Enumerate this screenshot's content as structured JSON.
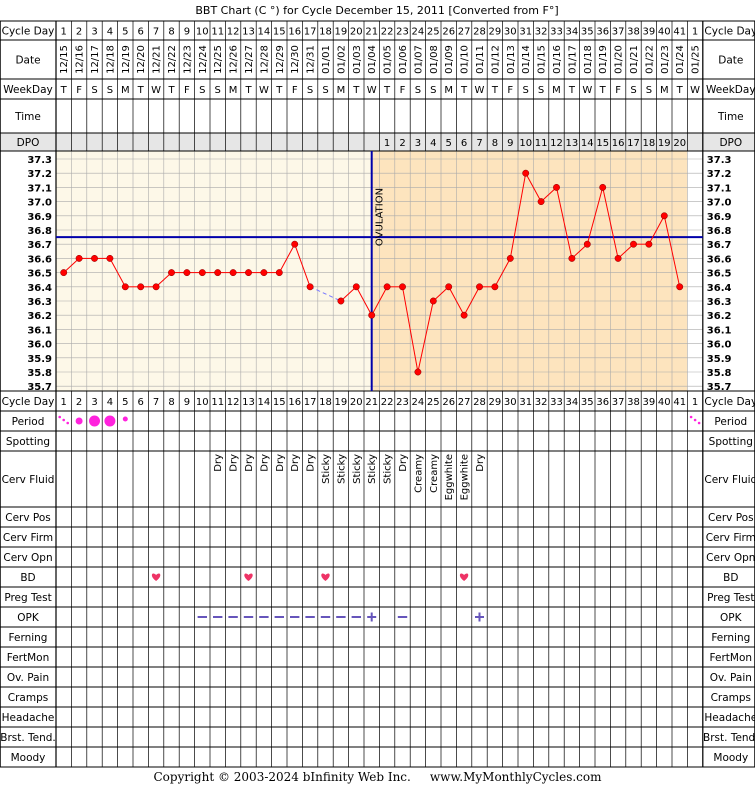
{
  "title": "BBT Chart (C °) for Cycle December 15, 2011  [Converted from F°]",
  "copyright": "Copyright © 2003-2024 bInfinity Web Inc.     www.MyMonthlyCycles.com",
  "row_labels": {
    "cycle_day": "Cycle Day",
    "date": "Date",
    "weekday": "WeekDay",
    "time": "Time",
    "dpo": "DPO",
    "period": "Period",
    "spotting": "Spotting",
    "cerv_fluid": "Cerv Fluid",
    "cerv_pos": "Cerv Pos",
    "cerv_firm": "Cerv Firm",
    "cerv_opn": "Cerv Opn",
    "bd": "BD",
    "preg_test": "Preg Test",
    "opk": "OPK",
    "ferning": "Ferning",
    "fertmon": "FertMon",
    "ov_pain": "Ov. Pain",
    "cramps": "Cramps",
    "headache": "Headache",
    "brst_tend": "Brst. Tend.",
    "moody": "Moody"
  },
  "colors": {
    "temp_line": "#ff0000",
    "coverline": "#0000aa",
    "ovulation_line": "#0000aa",
    "pre_ov_bg": "#fdf8e8",
    "post_ov_bg": "#fde4be",
    "period": "#ff22dd",
    "bd_heart": "#ee3366",
    "opk": "#6655bb"
  },
  "chart_data": {
    "type": "line",
    "cycle_days": [
      "1",
      "2",
      "3",
      "4",
      "5",
      "6",
      "7",
      "8",
      "9",
      "10",
      "11",
      "12",
      "13",
      "14",
      "15",
      "16",
      "17",
      "18",
      "19",
      "20",
      "21",
      "22",
      "23",
      "24",
      "25",
      "26",
      "27",
      "28",
      "29",
      "30",
      "31",
      "32",
      "33",
      "34",
      "35",
      "36",
      "37",
      "38",
      "39",
      "40",
      "41",
      "1"
    ],
    "dates": [
      "12/15",
      "12/16",
      "12/17",
      "12/18",
      "12/19",
      "12/20",
      "12/21",
      "12/22",
      "12/23",
      "12/24",
      "12/25",
      "12/26",
      "12/27",
      "12/28",
      "12/29",
      "12/30",
      "12/31",
      "01/01",
      "01/02",
      "01/03",
      "01/04",
      "01/05",
      "01/06",
      "01/07",
      "01/08",
      "01/09",
      "01/10",
      "01/11",
      "01/12",
      "01/13",
      "01/14",
      "01/15",
      "01/16",
      "01/17",
      "01/18",
      "01/19",
      "01/20",
      "01/21",
      "01/22",
      "01/23",
      "01/24",
      "01/25"
    ],
    "weekdays": [
      "T",
      "F",
      "S",
      "S",
      "M",
      "T",
      "W",
      "T",
      "F",
      "S",
      "S",
      "M",
      "T",
      "W",
      "T",
      "F",
      "S",
      "S",
      "M",
      "T",
      "W",
      "T",
      "F",
      "S",
      "S",
      "M",
      "T",
      "W",
      "T",
      "F",
      "S",
      "S",
      "M",
      "T",
      "W",
      "T",
      "F",
      "S",
      "S",
      "M",
      "T",
      "W"
    ],
    "dpo": [
      "",
      "",
      "",
      "",
      "",
      "",
      "",
      "",
      "",
      "",
      "",
      "",
      "",
      "",
      "",
      "",
      "",
      "",
      "",
      "",
      "",
      "1",
      "2",
      "3",
      "4",
      "5",
      "6",
      "7",
      "8",
      "9",
      "10",
      "11",
      "12",
      "13",
      "14",
      "15",
      "16",
      "17",
      "18",
      "19",
      "20",
      ""
    ],
    "temperatures": [
      36.5,
      36.6,
      36.6,
      36.6,
      36.4,
      36.4,
      36.4,
      36.5,
      36.5,
      36.5,
      36.5,
      36.5,
      36.5,
      36.5,
      36.5,
      36.7,
      36.4,
      null,
      36.3,
      36.4,
      36.2,
      36.4,
      36.4,
      35.8,
      36.3,
      36.4,
      36.2,
      36.4,
      36.4,
      36.6,
      37.2,
      37.0,
      37.1,
      36.6,
      36.7,
      37.1,
      36.6,
      36.7,
      36.7,
      36.9,
      36.4,
      null
    ],
    "dashed_gap_segment": [
      17,
      19
    ],
    "y_ticks": [
      "37.3",
      "37.2",
      "37.1",
      "37.0",
      "36.9",
      "36.8",
      "36.7",
      "36.6",
      "36.5",
      "36.4",
      "36.3",
      "36.2",
      "36.1",
      "36.0",
      "35.9",
      "35.8",
      "35.7"
    ],
    "ylim": [
      35.7,
      37.3
    ],
    "coverline": 36.75,
    "ovulation_day_index": 20,
    "ovulation_label": "OVULATION",
    "grid": true,
    "period": [
      1,
      2,
      3,
      3,
      1,
      0,
      0,
      0,
      0,
      0,
      0,
      0,
      0,
      0,
      0,
      0,
      0,
      0,
      0,
      0,
      0,
      0,
      0,
      0,
      0,
      0,
      0,
      0,
      0,
      0,
      0,
      0,
      0,
      0,
      0,
      0,
      0,
      0,
      0,
      0,
      0,
      1
    ],
    "cerv_fluid": [
      "",
      "",
      "",
      "",
      "",
      "",
      "",
      "",
      "",
      "",
      "Dry",
      "Dry",
      "Dry",
      "Dry",
      "Dry",
      "Dry",
      "Dry",
      "Sticky",
      "Sticky",
      "Sticky",
      "Sticky",
      "Sticky",
      "Dry",
      "Creamy",
      "Creamy",
      "Eggwhite",
      "Eggwhite",
      "Dry",
      "",
      "",
      "",
      "",
      "",
      "",
      "",
      "",
      "",
      "",
      "",
      "",
      "",
      ""
    ],
    "bd_days": [
      6,
      12,
      17,
      26
    ],
    "opk": [
      "",
      "",
      "",
      "",
      "",
      "",
      "",
      "",
      "",
      "neg",
      "neg",
      "neg",
      "neg",
      "neg",
      "neg",
      "neg",
      "neg",
      "neg",
      "neg",
      "neg",
      "pos",
      "",
      "neg",
      "",
      "",
      "",
      "",
      "pos",
      "",
      "",
      "",
      "",
      "",
      "",
      "",
      "",
      "",
      "",
      "",
      "",
      "",
      ""
    ]
  }
}
